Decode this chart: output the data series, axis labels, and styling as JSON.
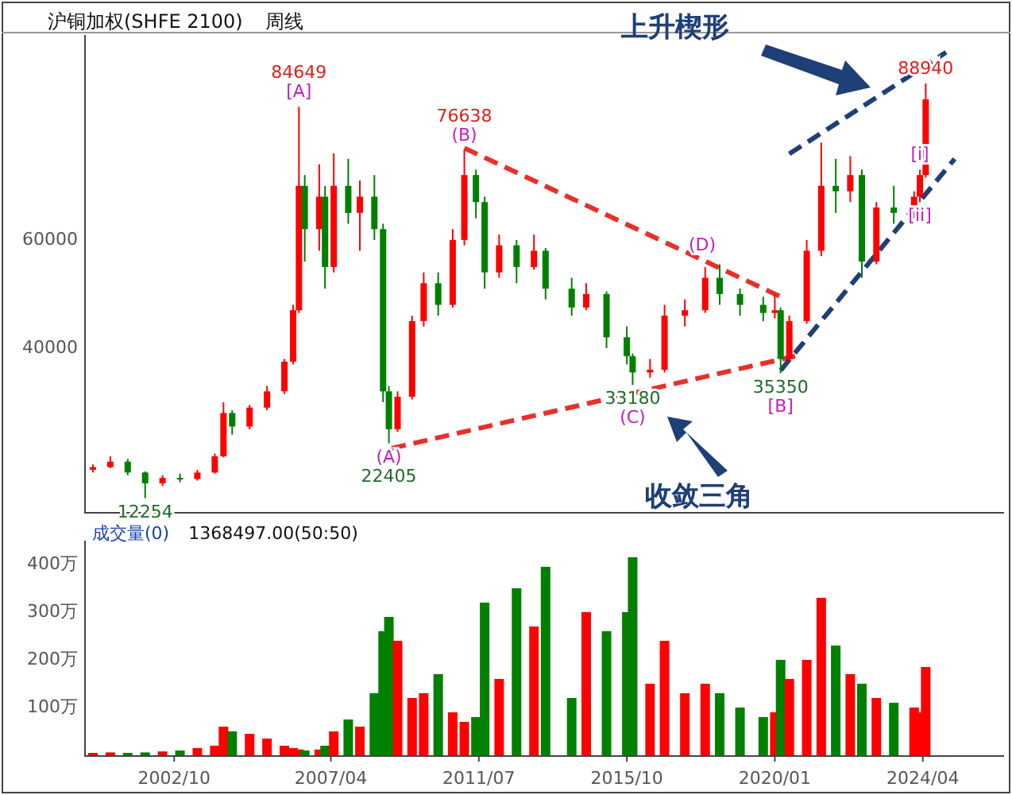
{
  "chart_data": [
    {
      "type": "candlestick",
      "title": "沪铜加权(SHFE 2100)",
      "subtitle": "周线",
      "x": [
        "2000-06",
        "2000-12",
        "2001-06",
        "2001-12",
        "2002-06",
        "2002-12",
        "2003-06",
        "2003-12",
        "2004-03",
        "2004-06",
        "2004-12",
        "2005-06",
        "2005-12",
        "2006-03",
        "2006-05",
        "2006-07",
        "2006-12",
        "2007-02",
        "2007-05",
        "2007-10",
        "2008-02",
        "2008-07",
        "2008-10",
        "2008-12",
        "2009-03",
        "2009-08",
        "2009-12",
        "2010-05",
        "2010-10",
        "2011-02",
        "2011-06",
        "2011-09",
        "2012-02",
        "2012-08",
        "2013-02",
        "2013-06",
        "2014-03",
        "2014-08",
        "2015-03",
        "2015-10",
        "2015-12",
        "2016-06",
        "2016-11",
        "2017-06",
        "2018-01",
        "2018-06",
        "2019-01",
        "2019-09",
        "2020-01",
        "2020-03",
        "2020-06",
        "2020-12",
        "2021-05",
        "2021-10",
        "2022-03",
        "2022-07",
        "2022-12",
        "2023-06",
        "2024-01",
        "2024-03",
        "2024-05"
      ],
      "ohlc": [
        [
          17500,
          18500,
          17000,
          18000
        ],
        [
          18000,
          20000,
          17800,
          19000
        ],
        [
          19000,
          19500,
          16500,
          17000
        ],
        [
          17000,
          17200,
          12254,
          15000
        ],
        [
          15000,
          16500,
          14500,
          16000
        ],
        [
          16000,
          16800,
          15200,
          15800
        ],
        [
          15800,
          17500,
          15500,
          17000
        ],
        [
          17000,
          20500,
          16800,
          20000
        ],
        [
          20000,
          30000,
          19800,
          28000
        ],
        [
          28000,
          28500,
          24000,
          25500
        ],
        [
          25500,
          29500,
          25000,
          29000
        ],
        [
          29000,
          33000,
          28500,
          32000
        ],
        [
          32000,
          38000,
          31500,
          37500
        ],
        [
          37500,
          48000,
          37000,
          47000
        ],
        [
          47000,
          84649,
          46500,
          70000
        ],
        [
          70000,
          72000,
          56000,
          62000
        ],
        [
          62000,
          74000,
          58000,
          68000
        ],
        [
          68000,
          70000,
          51000,
          55000
        ],
        [
          55000,
          76000,
          54000,
          70000
        ],
        [
          70000,
          75000,
          63000,
          65000
        ],
        [
          65000,
          71000,
          58000,
          68000
        ],
        [
          68000,
          72000,
          60000,
          62000
        ],
        [
          62000,
          63000,
          30000,
          32000
        ],
        [
          32000,
          33000,
          22405,
          25000
        ],
        [
          25000,
          32000,
          24500,
          31000
        ],
        [
          31000,
          46000,
          30500,
          45000
        ],
        [
          45000,
          54000,
          44000,
          52000
        ],
        [
          52000,
          54000,
          46000,
          48000
        ],
        [
          48000,
          62000,
          47500,
          60000
        ],
        [
          60000,
          76638,
          59000,
          72000
        ],
        [
          72000,
          73000,
          64000,
          67000
        ],
        [
          67000,
          68000,
          51000,
          54000
        ],
        [
          54000,
          61000,
          53000,
          59000
        ],
        [
          59000,
          60000,
          52000,
          55000
        ],
        [
          55000,
          61000,
          54500,
          58000
        ],
        [
          58000,
          58500,
          49000,
          51000
        ],
        [
          51000,
          53000,
          46000,
          47500
        ],
        [
          47500,
          52000,
          47000,
          50000
        ],
        [
          50000,
          50500,
          40000,
          42000
        ],
        [
          42000,
          44000,
          37000,
          38500
        ],
        [
          38500,
          39000,
          33180,
          35500
        ],
        [
          35500,
          38000,
          34500,
          36000
        ],
        [
          36000,
          48000,
          35500,
          46000
        ],
        [
          46000,
          49000,
          44000,
          47000
        ],
        [
          47000,
          55000,
          46500,
          53000
        ],
        [
          53000,
          55500,
          48000,
          50000
        ],
        [
          50000,
          51000,
          46000,
          48000
        ],
        [
          48000,
          49500,
          45000,
          46500
        ],
        [
          46500,
          50000,
          45500,
          47000
        ],
        [
          47000,
          47500,
          35350,
          38000
        ],
        [
          38000,
          46000,
          37500,
          45000
        ],
        [
          45000,
          60000,
          44500,
          58000
        ],
        [
          58000,
          78000,
          57000,
          70000
        ],
        [
          70000,
          75000,
          65000,
          69000
        ],
        [
          69000,
          75500,
          67000,
          72000
        ],
        [
          72000,
          73000,
          53000,
          56000
        ],
        [
          56000,
          67000,
          55500,
          66000
        ],
        [
          66000,
          70000,
          63000,
          65000
        ],
        [
          65000,
          69000,
          64000,
          68000
        ],
        [
          68000,
          73000,
          67000,
          72000
        ],
        [
          72000,
          88940,
          71500,
          86000
        ]
      ],
      "colors": [
        "#ff0000",
        "#ff0000",
        "#008000",
        "#008000",
        "#ff0000",
        "#008000",
        "#ff0000",
        "#ff0000",
        "#ff0000",
        "#008000",
        "#ff0000",
        "#ff0000",
        "#ff0000",
        "#ff0000",
        "#ff0000",
        "#008000",
        "#ff0000",
        "#008000",
        "#ff0000",
        "#008000",
        "#ff0000",
        "#008000",
        "#008000",
        "#008000",
        "#ff0000",
        "#ff0000",
        "#ff0000",
        "#008000",
        "#ff0000",
        "#ff0000",
        "#008000",
        "#008000",
        "#ff0000",
        "#008000",
        "#ff0000",
        "#008000",
        "#008000",
        "#ff0000",
        "#008000",
        "#008000",
        "#008000",
        "#ff0000",
        "#ff0000",
        "#ff0000",
        "#ff0000",
        "#008000",
        "#008000",
        "#008000",
        "#ff0000",
        "#008000",
        "#ff0000",
        "#ff0000",
        "#ff0000",
        "#008000",
        "#ff0000",
        "#008000",
        "#ff0000",
        "#008000",
        "#ff0000",
        "#ff0000",
        "#ff0000"
      ],
      "series": [
        {
          "type": "line",
          "x": [
            "2011-02",
            "2020-05"
          ],
          "values": [
            77000,
            49000
          ],
          "color": "#e8302a",
          "line_style": "dashed"
        },
        {
          "type": "line",
          "x": [
            "2009-01",
            "2020-08"
          ],
          "values": [
            21500,
            38500
          ],
          "color": "#e8302a",
          "line_style": "dashed"
        },
        {
          "type": "line",
          "x": [
            "2020-06",
            "2024-12"
          ],
          "values": [
            75900,
            94700
          ],
          "color": "#1f3f78",
          "line_style": "dashed"
        },
        {
          "type": "line",
          "x": [
            "2020-03",
            "2025-03"
          ],
          "values": [
            35900,
            75000
          ],
          "color": "#1f3f78",
          "line_style": "dashed"
        }
      ],
      "xlim": [
        "2000-03",
        "2026-08"
      ],
      "ylim": [
        9700,
        97900
      ],
      "yticks": [
        40000,
        60000
      ],
      "tick_labels": "y",
      "annotations": [
        {
          "text": "[A]",
          "x": "2006-05",
          "y": 84649
        },
        {
          "text": "84649",
          "x": "2006-05",
          "y": 84649
        },
        {
          "text": "(B)",
          "x": "2011-02",
          "y": 76638
        },
        {
          "text": "76638",
          "x": "2011-02",
          "y": 76638
        },
        {
          "text": "(A)",
          "x": "2008-12",
          "y": 22405
        },
        {
          "text": "22405",
          "x": "2008-12",
          "y": 22405
        },
        {
          "text": "12254",
          "x": "2001-12",
          "y": 12254
        },
        {
          "text": "33180",
          "x": "2015-12",
          "y": 33180
        },
        {
          "text": "(C)",
          "x": "2015-12",
          "y": 33180
        },
        {
          "text": "(D)",
          "x": "2017-12",
          "y": 56300
        },
        {
          "text": "35350",
          "x": "2020-03",
          "y": 35350
        },
        {
          "text": "[B]",
          "x": "2020-03",
          "y": 35350
        },
        {
          "text": "88940",
          "x": "2024-05",
          "y": 88940
        },
        {
          "text": "[i]",
          "x": "2024-03",
          "y": 73000
        },
        {
          "text": "[ii]",
          "x": "2024-03",
          "y": 67000
        },
        "上升楔形",
        "收敛三角"
      ]
    },
    {
      "type": "bar",
      "title": "成交量(0)",
      "subtitle": "1368497.00(50:50)",
      "x": [
        "2000-06",
        "2000-12",
        "2001-06",
        "2001-12",
        "2002-06",
        "2002-12",
        "2003-06",
        "2003-12",
        "2004-03",
        "2004-06",
        "2004-12",
        "2005-06",
        "2005-12",
        "2006-03",
        "2006-05",
        "2006-07",
        "2006-12",
        "2007-02",
        "2007-05",
        "2007-10",
        "2008-02",
        "2008-07",
        "2008-10",
        "2008-12",
        "2009-03",
        "2009-08",
        "2009-12",
        "2010-05",
        "2010-10",
        "2011-02",
        "2011-06",
        "2011-09",
        "2012-02",
        "2012-08",
        "2013-02",
        "2013-06",
        "2014-03",
        "2014-08",
        "2015-03",
        "2015-10",
        "2015-12",
        "2016-06",
        "2016-11",
        "2017-06",
        "2018-01",
        "2018-06",
        "2019-01",
        "2019-09",
        "2020-01",
        "2020-03",
        "2020-06",
        "2020-12",
        "2021-05",
        "2021-10",
        "2022-03",
        "2022-07",
        "2022-12",
        "2023-06",
        "2024-01",
        "2024-03",
        "2024-05"
      ],
      "values": [
        5,
        6,
        5,
        6,
        8,
        10,
        15,
        20,
        60,
        50,
        45,
        35,
        20,
        15,
        12,
        10,
        12,
        20,
        50,
        75,
        60,
        130,
        260,
        290,
        240,
        120,
        130,
        170,
        90,
        70,
        80,
        320,
        160,
        350,
        270,
        395,
        120,
        300,
        260,
        300,
        415,
        150,
        240,
        130,
        150,
        130,
        100,
        80,
        90,
        200,
        160,
        200,
        330,
        230,
        170,
        150,
        120,
        110,
        100,
        90,
        185
      ],
      "colors": [
        "#ff0000",
        "#ff0000",
        "#008000",
        "#008000",
        "#ff0000",
        "#008000",
        "#ff0000",
        "#ff0000",
        "#ff0000",
        "#008000",
        "#ff0000",
        "#ff0000",
        "#ff0000",
        "#ff0000",
        "#ff0000",
        "#008000",
        "#ff0000",
        "#008000",
        "#ff0000",
        "#008000",
        "#ff0000",
        "#008000",
        "#008000",
        "#008000",
        "#ff0000",
        "#ff0000",
        "#ff0000",
        "#008000",
        "#ff0000",
        "#ff0000",
        "#008000",
        "#008000",
        "#ff0000",
        "#008000",
        "#ff0000",
        "#008000",
        "#008000",
        "#ff0000",
        "#008000",
        "#008000",
        "#008000",
        "#ff0000",
        "#ff0000",
        "#ff0000",
        "#ff0000",
        "#008000",
        "#008000",
        "#008000",
        "#ff0000",
        "#008000",
        "#ff0000",
        "#ff0000",
        "#ff0000",
        "#008000",
        "#ff0000",
        "#008000",
        "#ff0000",
        "#008000",
        "#ff0000",
        "#ff0000",
        "#ff0000"
      ],
      "xlim": [
        "2000-03",
        "2026-08"
      ],
      "ylim": [
        0,
        450
      ],
      "yticks": [
        {
          "value": 100,
          "label": "100万"
        },
        {
          "value": 200,
          "label": "200万"
        },
        {
          "value": 300,
          "label": "300万"
        },
        {
          "value": 400,
          "label": "400万"
        }
      ],
      "xticks": [
        {
          "value": "2002-10",
          "label": "2002/10"
        },
        {
          "value": "2007-04",
          "label": "2007/04"
        },
        {
          "value": "2011-07",
          "label": "2011/07"
        },
        {
          "value": "2015-10",
          "label": "2015/10"
        },
        {
          "value": "2020-01",
          "label": "2020/01"
        },
        {
          "value": "2024-04",
          "label": "2024/04"
        }
      ]
    }
  ]
}
